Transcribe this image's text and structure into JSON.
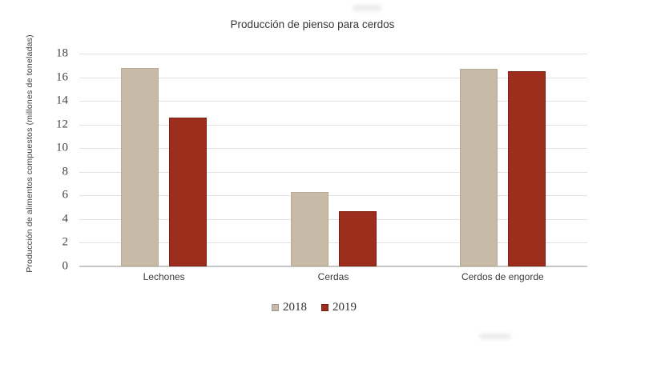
{
  "chart_data": {
    "type": "bar",
    "title": "Producción de pienso para cerdos",
    "xlabel": "",
    "ylabel": "Producción de alimentos compuestos (millones de toneladas)",
    "categories": [
      "Lechones",
      "Cerdas",
      "Cerdos de engorde"
    ],
    "series": [
      {
        "name": "2018",
        "values": [
          16.8,
          6.3,
          16.7
        ],
        "color": "#c7baa6",
        "border_color": "#b8ab96",
        "legend_swatch_border": "#9a9a9a"
      },
      {
        "name": "2019",
        "values": [
          12.6,
          4.7,
          16.5
        ],
        "color": "#9d2e1e",
        "border_color": "#7d2114",
        "legend_swatch_border": "#6e1d12"
      }
    ],
    "ylim": [
      0,
      18
    ],
    "ytick_step": 2,
    "grid": true,
    "legend_position": "bottom",
    "gridline_color": "#e3e3e3",
    "axis_line_color": "#c6c6c6",
    "text_color": "#3d3d3d"
  }
}
